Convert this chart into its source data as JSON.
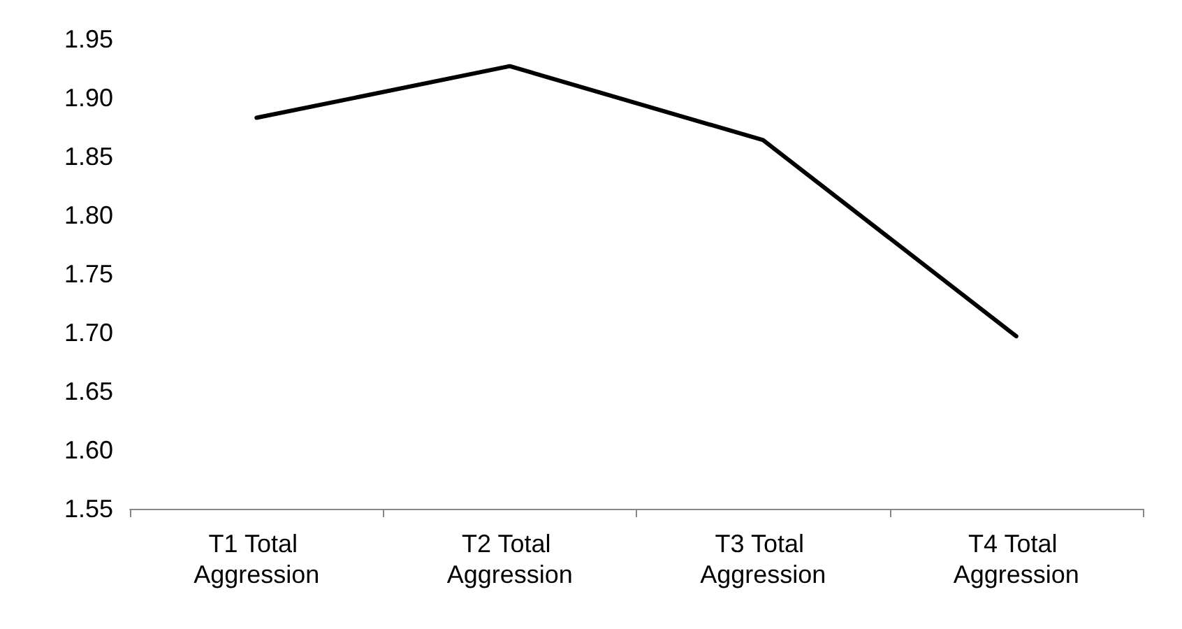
{
  "chart_data": {
    "type": "line",
    "categories": [
      "T1 Total Aggression",
      "T2 Total Aggression",
      "T3 Total Aggression",
      "T4 Total Aggression"
    ],
    "series": [
      {
        "color": "#000000",
        "values": [
          1.883,
          1.927,
          1.864,
          1.697
        ]
      }
    ],
    "ylim": [
      1.55,
      1.95
    ],
    "yticks": [
      {
        "value": 1.55,
        "label": "1.55"
      },
      {
        "value": 1.6,
        "label": "1.60"
      },
      {
        "value": 1.65,
        "label": "1.65"
      },
      {
        "value": 1.7,
        "label": "1.70"
      },
      {
        "value": 1.75,
        "label": "1.75"
      },
      {
        "value": 1.8,
        "label": "1.80"
      },
      {
        "value": 1.85,
        "label": "1.85"
      },
      {
        "value": 1.9,
        "label": "1.90"
      },
      {
        "value": 1.95,
        "label": "1.95"
      }
    ],
    "grid": false,
    "marker": "none",
    "line_style": "solid"
  }
}
